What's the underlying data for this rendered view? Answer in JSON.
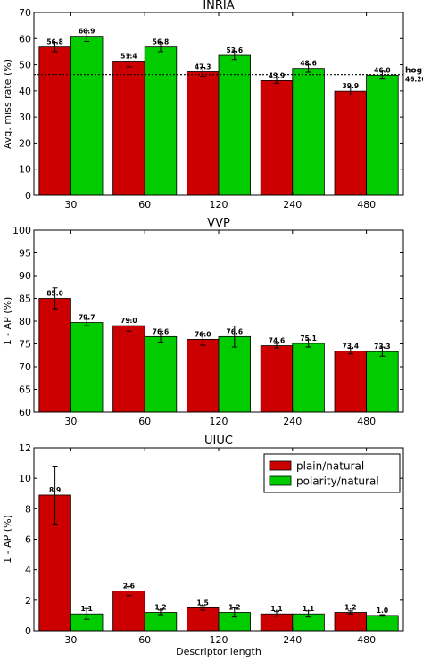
{
  "colors": {
    "plain": "#cc0000",
    "polarity": "#00cc00",
    "edge": "#000000",
    "errorbar": "#000000"
  },
  "shared": {
    "categories": [
      "30",
      "60",
      "120",
      "240",
      "480"
    ],
    "xlabel": "Descriptor length"
  },
  "legend": {
    "entries": [
      "plain/natural",
      "polarity/natural"
    ]
  },
  "chart_data": [
    {
      "type": "bar",
      "title": "INRIA",
      "ylabel": "Avg. miss rate (%)",
      "ylim": [
        0,
        70
      ],
      "yticks": [
        "0",
        "10",
        "20",
        "30",
        "40",
        "50",
        "60",
        "70"
      ],
      "categories": [
        "30",
        "60",
        "120",
        "240",
        "480"
      ],
      "series": [
        {
          "name": "plain/natural",
          "values": [
            56.8,
            51.4,
            47.3,
            43.9,
            39.9
          ],
          "labels": [
            "56.8",
            "51.4",
            "47.3",
            "43.9",
            "39.9"
          ],
          "errors": [
            1.8,
            2.2,
            1.7,
            1.0,
            1.5
          ]
        },
        {
          "name": "polarity/natural",
          "values": [
            60.9,
            56.8,
            53.6,
            48.6,
            46.0
          ],
          "labels": [
            "60.9",
            "56.8",
            "53.6",
            "48.6",
            "46.0"
          ],
          "errors": [
            2.0,
            1.8,
            1.6,
            1.5,
            1.5
          ]
        }
      ],
      "reference_line": {
        "name": "hog",
        "value": 46.2,
        "label": "hog",
        "value_label": "46.20"
      }
    },
    {
      "type": "bar",
      "title": "VVP",
      "ylabel": "1 - AP (%)",
      "ylim": [
        60,
        100
      ],
      "yticks": [
        "60",
        "65",
        "70",
        "75",
        "80",
        "85",
        "90",
        "95",
        "100"
      ],
      "categories": [
        "30",
        "60",
        "120",
        "240",
        "480"
      ],
      "series": [
        {
          "name": "plain/natural",
          "values": [
            85.0,
            79.0,
            76.0,
            74.6,
            73.4
          ],
          "labels": [
            "85.0",
            "79.0",
            "76.0",
            "74.6",
            "73.4"
          ],
          "errors": [
            2.3,
            1.2,
            1.3,
            0.5,
            0.6
          ]
        },
        {
          "name": "polarity/natural",
          "values": [
            79.7,
            76.6,
            76.6,
            75.1,
            73.3
          ],
          "labels": [
            "79.7",
            "76.6",
            "76.6",
            "75.1",
            "73.3"
          ],
          "errors": [
            0.7,
            1.2,
            2.3,
            0.8,
            1.0
          ]
        }
      ]
    },
    {
      "type": "bar",
      "title": "UIUC",
      "ylabel": "1 - AP (%)",
      "xlabel": "Descriptor length",
      "ylim": [
        0,
        12
      ],
      "yticks": [
        "0",
        "2",
        "4",
        "6",
        "8",
        "10",
        "12"
      ],
      "categories": [
        "30",
        "60",
        "120",
        "240",
        "480"
      ],
      "legend_position": "top-right",
      "series": [
        {
          "name": "plain/natural",
          "values": [
            8.9,
            2.6,
            1.5,
            1.1,
            1.2
          ],
          "labels": [
            "8.9",
            "2.6",
            "1.5",
            "1.1",
            "1.2"
          ],
          "errors": [
            1.9,
            0.3,
            0.15,
            0.15,
            0.1
          ]
        },
        {
          "name": "polarity/natural",
          "values": [
            1.1,
            1.2,
            1.2,
            1.1,
            1.0
          ],
          "labels": [
            "1.1",
            "1.2",
            "1.2",
            "1.1",
            "1.0"
          ],
          "errors": [
            0.35,
            0.15,
            0.3,
            0.2,
            0.05
          ]
        }
      ]
    }
  ]
}
